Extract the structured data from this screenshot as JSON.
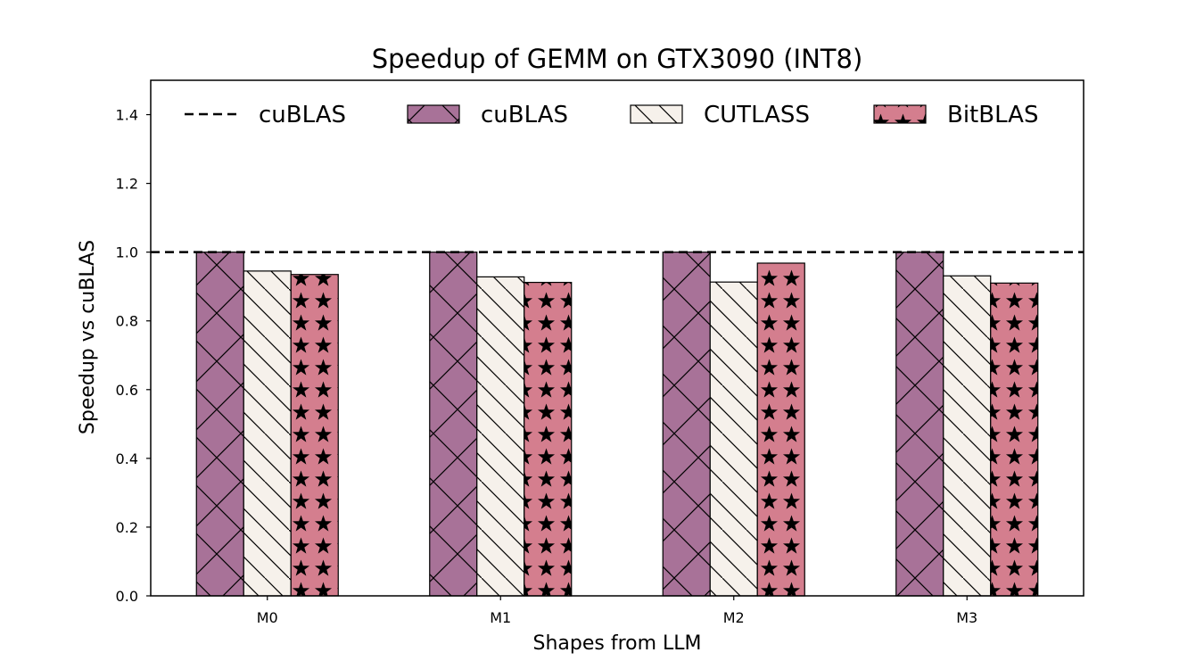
{
  "chart_data": {
    "type": "bar",
    "title": "Speedup of GEMM on GTX3090 (INT8)",
    "xlabel": "Shapes from LLM",
    "ylabel": "Speedup vs cuBLAS",
    "categories": [
      "M0",
      "M1",
      "M2",
      "M3"
    ],
    "ylim": [
      0,
      1.5
    ],
    "yticks": [
      "0.0",
      "0.2",
      "0.4",
      "0.6",
      "0.8",
      "1.0",
      "1.2",
      "1.4"
    ],
    "reference_line": {
      "name": "cuBLAS",
      "value": 1.0,
      "style": "dashed"
    },
    "series": [
      {
        "name": "cuBLAS",
        "values": [
          1.0,
          1.0,
          1.0,
          1.0
        ],
        "color": "#a87298",
        "hatch": "cross"
      },
      {
        "name": "CUTLASS",
        "values": [
          0.945,
          0.928,
          0.913,
          0.931
        ],
        "color": "#f6f1eb",
        "hatch": "backslash"
      },
      {
        "name": "BitBLAS",
        "values": [
          0.935,
          0.912,
          0.968,
          0.91
        ],
        "color": "#d47e8e",
        "hatch": "star"
      }
    ],
    "grid": false,
    "legend_position": "top"
  }
}
